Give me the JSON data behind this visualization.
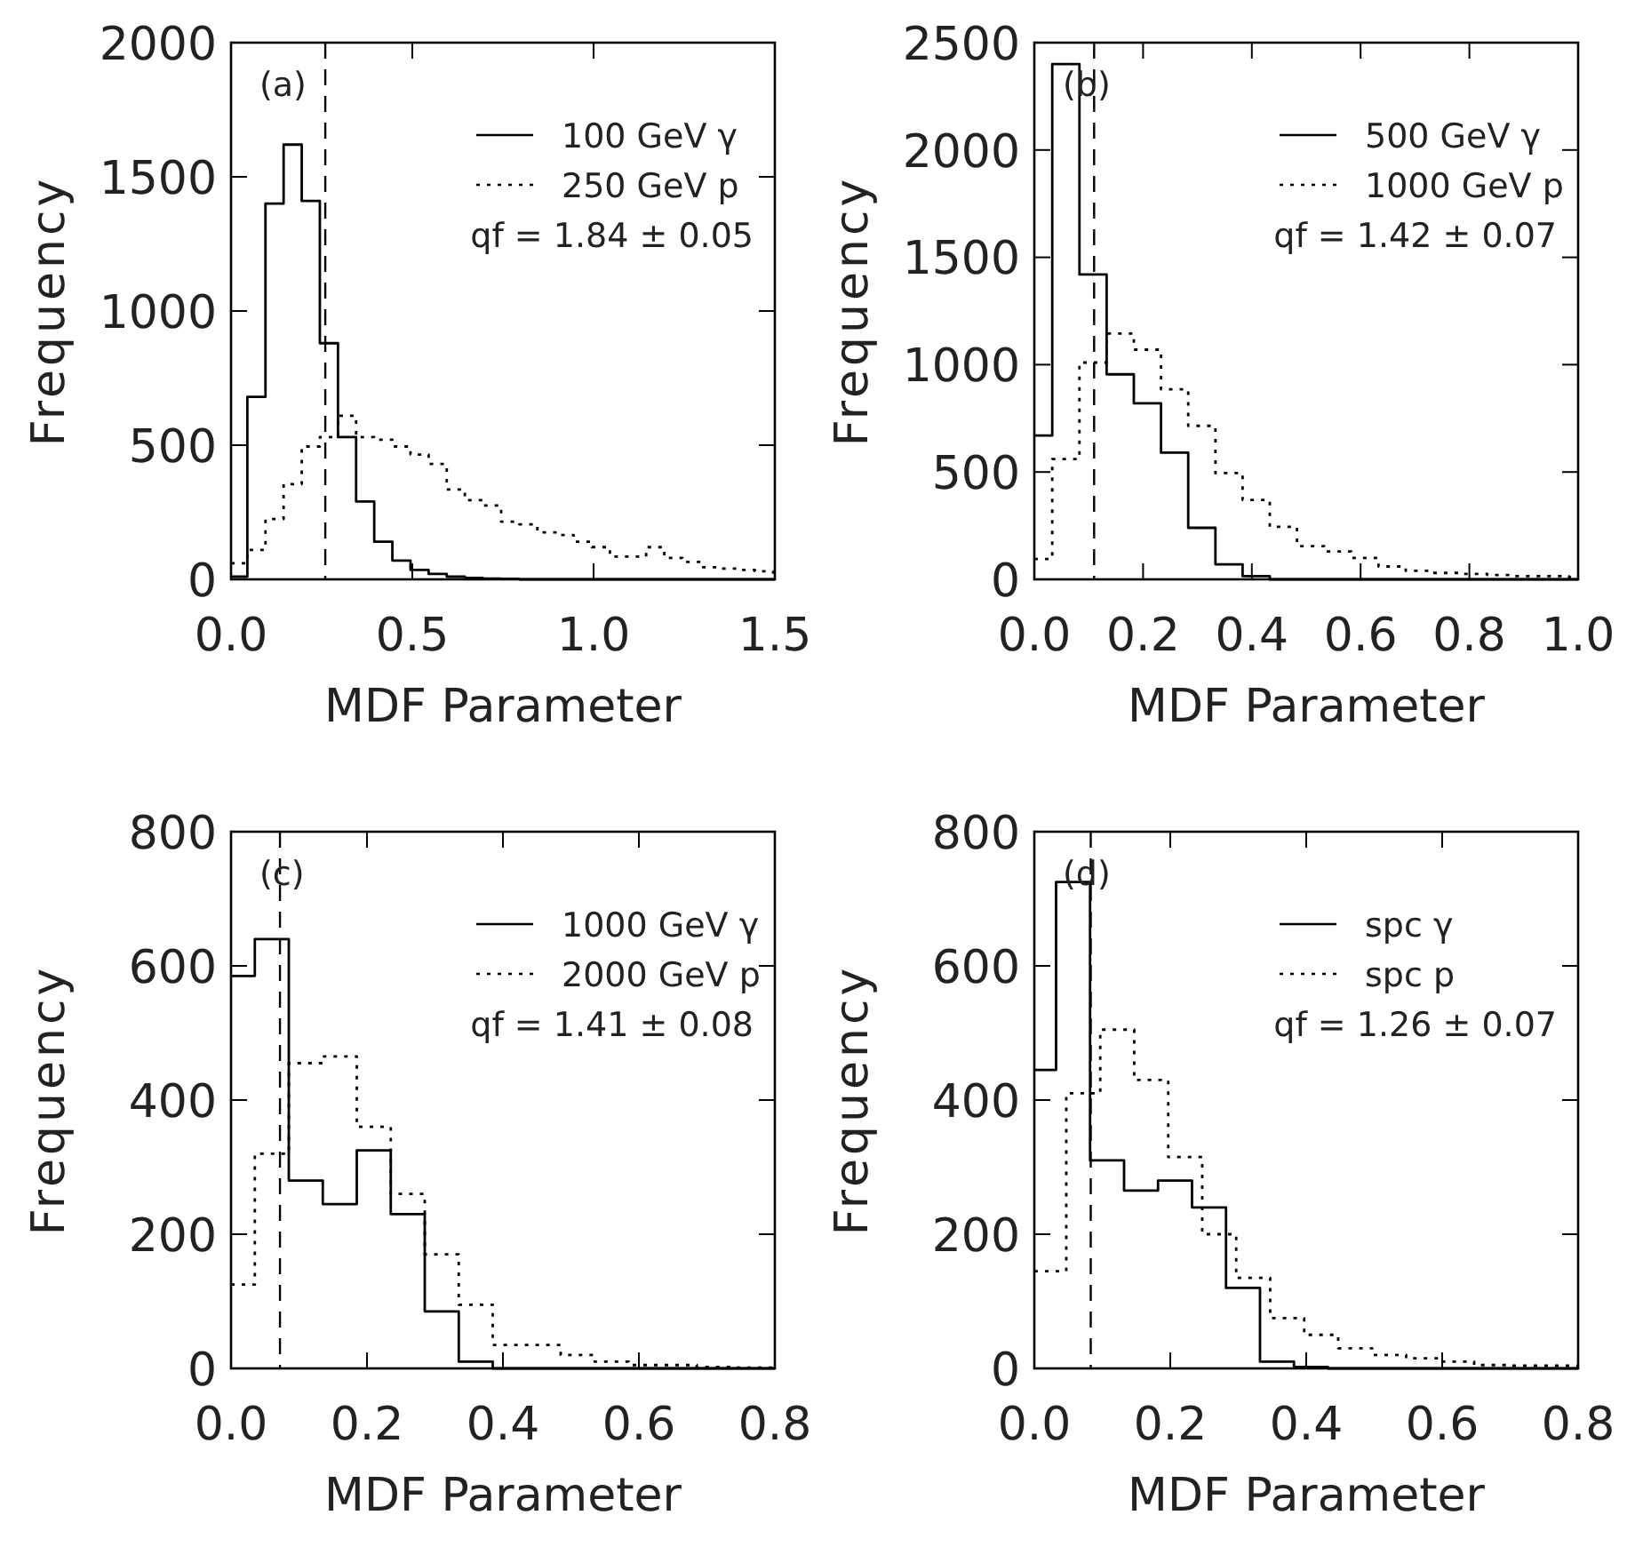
{
  "chart_data": [
    {
      "type": "step",
      "xlabel": "MDF Parameter",
      "ylabel": "Frequency",
      "xlim": [
        0,
        1.5
      ],
      "ylim": [
        0,
        2000
      ],
      "xticks": [
        {
          "value": 0,
          "label": "0.0"
        },
        {
          "value": 0.5,
          "label": "0.5"
        },
        {
          "value": 1,
          "label": "1.0"
        },
        {
          "value": 1.5,
          "label": "1.5"
        }
      ],
      "yticks": [
        0,
        500,
        1000,
        1500,
        2000
      ],
      "legend": "top right",
      "annotations": [
        "(a)",
        "qf = 1.84 ± 0.05"
      ],
      "ref_lines": [
        {
          "axis": "x",
          "value": 0.26,
          "line_style": "dashed"
        }
      ],
      "x": [
        0,
        0.045,
        0.095,
        0.145,
        0.195,
        0.245,
        0.295,
        0.345,
        0.395,
        0.445,
        0.495,
        0.545,
        0.595,
        0.645,
        0.695,
        0.745,
        0.795,
        0.845,
        0.895,
        0.945,
        0.995,
        1.045,
        1.095,
        1.145,
        1.195,
        1.245,
        1.295,
        1.345,
        1.395,
        1.445,
        1.495,
        1.5
      ],
      "series": [
        {
          "name": "100 GeV γ",
          "color": "#000000",
          "line_style": "solid",
          "values": [
            10,
            680,
            1400,
            1620,
            1410,
            880,
            530,
            290,
            140,
            70,
            35,
            20,
            10,
            5,
            3,
            2,
            0,
            0,
            0,
            0,
            0,
            0,
            0,
            0,
            0,
            0,
            0,
            0,
            0,
            0,
            0,
            0
          ]
        },
        {
          "name": "250 GeV p",
          "color": "#000000",
          "line_style": "dotted",
          "values": [
            60,
            110,
            225,
            355,
            495,
            530,
            610,
            530,
            520,
            495,
            465,
            430,
            335,
            295,
            275,
            215,
            205,
            175,
            165,
            140,
            120,
            85,
            85,
            120,
            80,
            65,
            45,
            40,
            35,
            30,
            25,
            25
          ]
        }
      ]
    },
    {
      "type": "step",
      "xlabel": "MDF Parameter",
      "ylabel": "Frequency",
      "xlim": [
        0,
        1
      ],
      "ylim": [
        0,
        2500
      ],
      "xticks": [
        {
          "value": 0,
          "label": "0.0"
        },
        {
          "value": 0.2,
          "label": "0.2"
        },
        {
          "value": 0.4,
          "label": "0.4"
        },
        {
          "value": 0.6,
          "label": "0.6"
        },
        {
          "value": 0.8,
          "label": "0.8"
        },
        {
          "value": 1,
          "label": "1.0"
        }
      ],
      "yticks": [
        0,
        500,
        1000,
        1500,
        2000,
        2500
      ],
      "legend": "top right",
      "annotations": [
        "(b)",
        "qf = 1.42 ± 0.07"
      ],
      "ref_lines": [
        {
          "axis": "x",
          "value": 0.11,
          "line_style": "dashed"
        }
      ],
      "x": [
        0,
        0.033,
        0.083,
        0.133,
        0.183,
        0.233,
        0.283,
        0.333,
        0.383,
        0.433,
        0.483,
        0.533,
        0.583,
        0.633,
        0.683,
        0.733,
        0.783,
        0.833,
        0.883,
        0.933,
        0.983,
        1
      ],
      "series": [
        {
          "name": "500 GeV γ",
          "color": "#000000",
          "line_style": "solid",
          "values": [
            670,
            2400,
            1420,
            955,
            820,
            590,
            240,
            70,
            15,
            0,
            0,
            0,
            0,
            0,
            0,
            0,
            0,
            0,
            0,
            0,
            0,
            0
          ]
        },
        {
          "name": "1000 GeV p",
          "color": "#000000",
          "line_style": "dotted",
          "values": [
            95,
            560,
            1010,
            1145,
            1070,
            885,
            715,
            495,
            370,
            245,
            155,
            130,
            100,
            60,
            40,
            30,
            25,
            20,
            15,
            15,
            10,
            10
          ]
        }
      ]
    },
    {
      "type": "step",
      "xlabel": "MDF Parameter",
      "ylabel": "Frequency",
      "xlim": [
        0,
        0.8
      ],
      "ylim": [
        0,
        800
      ],
      "xticks": [
        {
          "value": 0,
          "label": "0.0"
        },
        {
          "value": 0.2,
          "label": "0.2"
        },
        {
          "value": 0.4,
          "label": "0.4"
        },
        {
          "value": 0.6,
          "label": "0.6"
        },
        {
          "value": 0.8,
          "label": "0.8"
        }
      ],
      "yticks": [
        0,
        200,
        400,
        600,
        800
      ],
      "legend": "top right",
      "annotations": [
        "(c)",
        "qf = 1.41 ± 0.08"
      ],
      "ref_lines": [
        {
          "axis": "x",
          "value": 0.072,
          "line_style": "dashed"
        }
      ],
      "x": [
        0,
        0.035,
        0.085,
        0.135,
        0.185,
        0.235,
        0.285,
        0.335,
        0.385,
        0.435,
        0.485,
        0.535,
        0.585,
        0.635,
        0.685,
        0.735,
        0.785,
        0.8
      ],
      "series": [
        {
          "name": "1000 GeV γ",
          "color": "#000000",
          "line_style": "solid",
          "values": [
            585,
            640,
            280,
            245,
            325,
            230,
            85,
            10,
            0,
            0,
            0,
            0,
            0,
            0,
            0,
            0,
            0,
            0
          ]
        },
        {
          "name": "2000 GeV p",
          "color": "#000000",
          "line_style": "dotted",
          "values": [
            125,
            320,
            455,
            465,
            360,
            260,
            170,
            95,
            35,
            35,
            20,
            10,
            5,
            5,
            2,
            1,
            1,
            1
          ]
        }
      ]
    },
    {
      "type": "step",
      "xlabel": "MDF Parameter",
      "ylabel": "Frequency",
      "xlim": [
        0,
        0.8
      ],
      "ylim": [
        0,
        800
      ],
      "xticks": [
        {
          "value": 0,
          "label": "0.0"
        },
        {
          "value": 0.2,
          "label": "0.2"
        },
        {
          "value": 0.4,
          "label": "0.4"
        },
        {
          "value": 0.6,
          "label": "0.6"
        },
        {
          "value": 0.8,
          "label": "0.8"
        }
      ],
      "yticks": [
        0,
        200,
        400,
        600,
        800
      ],
      "legend": "top right",
      "annotations": [
        "(d)",
        "qf = 1.26 ± 0.07"
      ],
      "ref_lines": [
        {
          "axis": "x",
          "value": 0.083,
          "line_style": "dashed"
        }
      ],
      "series": [
        {
          "name": "spc γ",
          "color": "#000000",
          "line_style": "solid",
          "x": [
            0,
            0.032,
            0.082,
            0.132,
            0.182,
            0.232,
            0.282,
            0.332,
            0.382,
            0.432,
            0.482,
            0.532,
            0.582,
            0.632,
            0.682,
            0.732,
            0.782,
            0.8
          ],
          "values": [
            445,
            725,
            310,
            265,
            280,
            240,
            120,
            10,
            2,
            0,
            0,
            0,
            0,
            0,
            0,
            0,
            0,
            0
          ]
        },
        {
          "name": "spc p",
          "color": "#000000",
          "line_style": "dotted",
          "x": [
            0,
            0.047,
            0.097,
            0.147,
            0.197,
            0.247,
            0.297,
            0.347,
            0.397,
            0.447,
            0.497,
            0.547,
            0.597,
            0.647,
            0.697,
            0.747,
            0.8
          ],
          "values": [
            145,
            410,
            505,
            430,
            315,
            200,
            135,
            75,
            50,
            30,
            20,
            15,
            10,
            5,
            4,
            4,
            4
          ]
        }
      ]
    }
  ]
}
